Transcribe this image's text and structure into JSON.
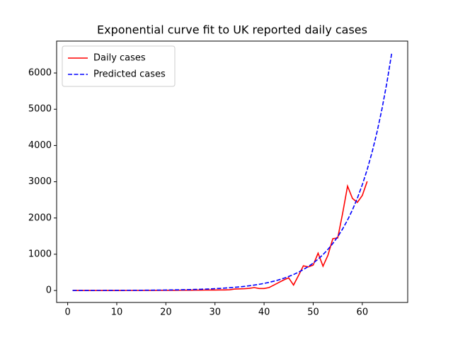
{
  "chart_data": {
    "type": "line",
    "title": "Exponential curve fit to UK reported daily cases",
    "xlim": [
      -2.25,
      69.25
    ],
    "xticks": [
      0,
      10,
      20,
      30,
      40,
      50,
      60
    ],
    "ylim": [
      -330,
      6880
    ],
    "yticks": [
      0,
      1000,
      2000,
      3000,
      4000,
      5000,
      6000
    ],
    "grid": false,
    "legend": "upper left",
    "series": [
      {
        "name": "Daily cases",
        "color": "#ff0000",
        "linestyle": "solid",
        "x": [
          1,
          2,
          3,
          4,
          5,
          6,
          7,
          8,
          9,
          10,
          11,
          12,
          13,
          14,
          15,
          16,
          17,
          18,
          19,
          20,
          21,
          22,
          23,
          24,
          25,
          26,
          27,
          28,
          29,
          30,
          31,
          32,
          33,
          34,
          35,
          36,
          37,
          38,
          39,
          40,
          41,
          42,
          43,
          44,
          45,
          46,
          47,
          48,
          49,
          50,
          51,
          52,
          53,
          54,
          55,
          56,
          57,
          58,
          59,
          60,
          61
        ],
        "values": [
          0,
          0,
          0,
          0,
          0,
          0,
          0,
          0,
          1,
          1,
          1,
          2,
          2,
          2,
          3,
          3,
          4,
          4,
          5,
          5,
          6,
          6,
          7,
          8,
          9,
          10,
          11,
          12,
          13,
          14,
          15,
          16,
          20,
          40,
          45,
          50,
          60,
          80,
          55,
          55,
          80,
          150,
          220,
          290,
          350,
          150,
          410,
          680,
          650,
          700,
          1030,
          670,
          970,
          1430,
          1450,
          2130,
          2880,
          2540,
          2430,
          2620,
          3010
        ]
      },
      {
        "name": "Predicted cases",
        "color": "#0000ff",
        "linestyle": "dashed",
        "x": [
          1,
          2,
          3,
          4,
          5,
          6,
          7,
          8,
          9,
          10,
          11,
          12,
          13,
          14,
          15,
          16,
          17,
          18,
          19,
          20,
          21,
          22,
          23,
          24,
          25,
          26,
          27,
          28,
          29,
          30,
          31,
          32,
          33,
          34,
          35,
          36,
          37,
          38,
          39,
          40,
          41,
          42,
          43,
          44,
          45,
          46,
          47,
          48,
          49,
          50,
          51,
          52,
          53,
          54,
          55,
          56,
          57,
          58,
          59,
          60,
          61,
          62,
          63,
          64,
          65,
          66
        ],
        "values": [
          1.01,
          1.16,
          1.33,
          1.52,
          1.74,
          1.99,
          2.28,
          2.61,
          2.98,
          3.41,
          3.91,
          4.47,
          5.12,
          5.86,
          6.7,
          7.67,
          8.78,
          10,
          11.5,
          13.2,
          15.1,
          17.3,
          19.7,
          22.6,
          25.8,
          29.6,
          33.9,
          38.8,
          44.4,
          50.8,
          58.1,
          66.5,
          76.1,
          87.1,
          99.7,
          114,
          131,
          150,
          171,
          196,
          224,
          257,
          294,
          336,
          385,
          441,
          504,
          577,
          661,
          756,
          865,
          990,
          1133,
          1297,
          1484,
          1699,
          1944,
          2225,
          2547,
          2915,
          3336,
          3818,
          4370,
          5001,
          5724,
          6551
        ]
      }
    ]
  }
}
